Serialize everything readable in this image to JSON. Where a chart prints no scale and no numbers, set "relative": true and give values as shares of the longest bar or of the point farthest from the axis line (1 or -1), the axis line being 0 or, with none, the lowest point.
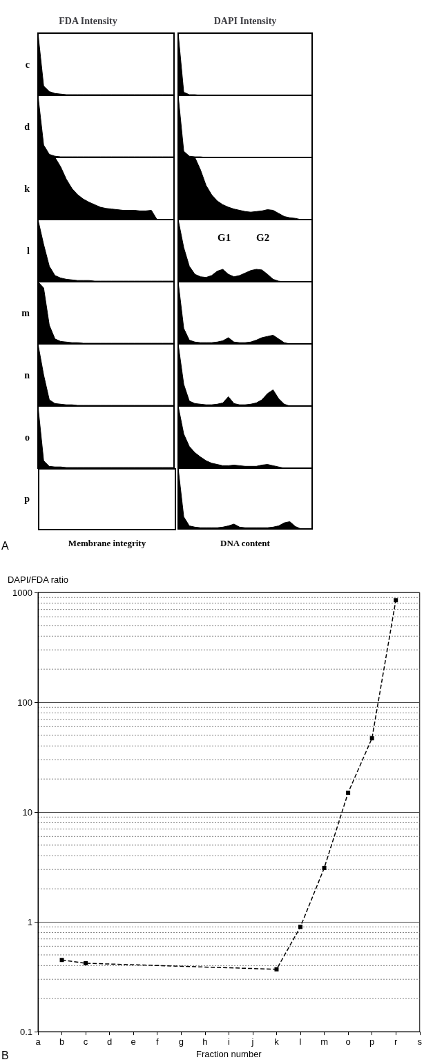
{
  "chart_data": [
    {
      "type": "area",
      "title": "FDA Intensity",
      "ylabel": "c",
      "relative": true,
      "color": "#000000",
      "categories": [
        null,
        null,
        null,
        null,
        null,
        null,
        null,
        null,
        null,
        null,
        null,
        null,
        null,
        null,
        null,
        null,
        null,
        null,
        null,
        null,
        null,
        null,
        null,
        null,
        null
      ],
      "values": [
        1,
        0.15,
        0.06,
        0.03,
        0.02,
        0.01,
        0.01,
        0.01,
        0.01,
        0.01,
        0.01,
        0.01,
        0.01,
        0.01,
        0.01,
        0.01,
        0.01,
        0.01,
        0.01,
        0.01,
        0.01,
        0.01,
        0.01,
        0.01,
        0.01
      ]
    },
    {
      "type": "area",
      "title": "DAPI Intensity",
      "relative": true,
      "color": "#000000",
      "categories": [
        null,
        null,
        null,
        null,
        null,
        null,
        null,
        null,
        null,
        null,
        null,
        null,
        null,
        null,
        null,
        null,
        null,
        null,
        null,
        null,
        null,
        null,
        null,
        null,
        null
      ],
      "values": [
        1,
        0.05,
        0.01,
        0.01,
        0,
        0,
        0,
        0,
        0,
        0,
        0,
        0,
        0,
        0,
        0,
        0,
        0,
        0,
        0,
        0,
        0,
        0,
        0,
        0,
        0
      ]
    },
    {
      "type": "area",
      "ylabel": "d",
      "relative": true,
      "color": "#000000",
      "categories": [
        null,
        null,
        null,
        null,
        null,
        null,
        null,
        null,
        null,
        null,
        null,
        null,
        null,
        null,
        null,
        null,
        null,
        null,
        null,
        null,
        null,
        null,
        null,
        null,
        null
      ],
      "values": [
        1,
        0.2,
        0.05,
        0.02,
        0.01,
        0.01,
        0.01,
        0.01,
        0.01,
        0.01,
        0.01,
        0.01,
        0.01,
        0.01,
        0.01,
        0.01,
        0.01,
        0.01,
        0.01,
        0.01,
        0.01,
        0.01,
        0.01,
        0.01,
        0.01
      ]
    },
    {
      "type": "area",
      "relative": true,
      "color": "#000000",
      "categories": [
        null,
        null,
        null,
        null,
        null,
        null,
        null,
        null,
        null,
        null,
        null,
        null,
        null,
        null,
        null,
        null,
        null,
        null,
        null,
        null,
        null,
        null,
        null,
        null,
        null
      ],
      "values": [
        1,
        0.1,
        0.02,
        0.01,
        0.01,
        0,
        0,
        0,
        0,
        0,
        0,
        0,
        0,
        0,
        0,
        0,
        0,
        0,
        0,
        0,
        0,
        0,
        0,
        0,
        0
      ]
    },
    {
      "type": "area",
      "ylabel": "k",
      "relative": true,
      "color": "#000000",
      "categories": [
        null,
        null,
        null,
        null,
        null,
        null,
        null,
        null,
        null,
        null,
        null,
        null,
        null,
        null,
        null,
        null,
        null,
        null,
        null,
        null,
        null,
        null,
        null,
        null,
        null
      ],
      "values": [
        1,
        1,
        1,
        1,
        0.85,
        0.65,
        0.5,
        0.4,
        0.33,
        0.28,
        0.24,
        0.2,
        0.18,
        0.17,
        0.16,
        0.15,
        0.15,
        0.15,
        0.14,
        0.14,
        0.15,
        0,
        0,
        0,
        0
      ]
    },
    {
      "type": "area",
      "relative": true,
      "color": "#000000",
      "categories": [
        null,
        null,
        null,
        null,
        null,
        null,
        null,
        null,
        null,
        null,
        null,
        null,
        null,
        null,
        null,
        null,
        null,
        null,
        null,
        null,
        null,
        null,
        null,
        null,
        null
      ],
      "values": [
        1,
        1,
        1,
        1,
        0.8,
        0.55,
        0.4,
        0.3,
        0.24,
        0.2,
        0.17,
        0.15,
        0.13,
        0.12,
        0.13,
        0.14,
        0.16,
        0.15,
        0.1,
        0.05,
        0.03,
        0.02,
        0,
        0,
        0
      ]
    },
    {
      "type": "area",
      "ylabel": "l",
      "relative": true,
      "color": "#000000",
      "categories": [
        null,
        null,
        null,
        null,
        null,
        null,
        null,
        null,
        null,
        null,
        null,
        null,
        null,
        null,
        null,
        null,
        null,
        null,
        null,
        null,
        null,
        null,
        null,
        null,
        null
      ],
      "values": [
        1,
        0.6,
        0.25,
        0.1,
        0.06,
        0.04,
        0.03,
        0.02,
        0.02,
        0.02,
        0.01,
        0.01,
        0.01,
        0.01,
        0.01,
        0.01,
        0.01,
        0.01,
        0.01,
        0.01,
        0.01,
        0.01,
        0.01,
        0.01,
        0.01
      ]
    },
    {
      "type": "area",
      "relative": true,
      "color": "#000000",
      "annotations": [
        "G1",
        "G2"
      ],
      "categories": [
        null,
        null,
        null,
        null,
        null,
        null,
        null,
        null,
        null,
        null,
        null,
        null,
        null,
        null,
        null,
        null,
        null,
        null,
        null,
        null,
        null,
        null,
        null,
        null,
        null
      ],
      "values": [
        1,
        0.55,
        0.25,
        0.12,
        0.08,
        0.07,
        0.1,
        0.17,
        0.2,
        0.12,
        0.08,
        0.1,
        0.14,
        0.18,
        0.2,
        0.19,
        0.12,
        0.04,
        0.01,
        0,
        0,
        0,
        0,
        0,
        0
      ]
    },
    {
      "type": "area",
      "ylabel": "m",
      "relative": true,
      "color": "#000000",
      "categories": [
        null,
        null,
        null,
        null,
        null,
        null,
        null,
        null,
        null,
        null,
        null,
        null,
        null,
        null,
        null,
        null,
        null,
        null,
        null,
        null,
        null,
        null,
        null,
        null,
        null
      ],
      "values": [
        1,
        0.9,
        0.3,
        0.08,
        0.04,
        0.03,
        0.02,
        0.02,
        0.01,
        0.01,
        0.01,
        0.01,
        0.01,
        0.01,
        0.01,
        0.01,
        0.01,
        0.01,
        0.01,
        0.01,
        0.01,
        0.01,
        0.01,
        0.01,
        0.01
      ]
    },
    {
      "type": "area",
      "relative": true,
      "color": "#000000",
      "categories": [
        null,
        null,
        null,
        null,
        null,
        null,
        null,
        null,
        null,
        null,
        null,
        null,
        null,
        null,
        null,
        null,
        null,
        null,
        null,
        null,
        null,
        null,
        null,
        null,
        null
      ],
      "values": [
        1,
        0.25,
        0.06,
        0.03,
        0.02,
        0.02,
        0.02,
        0.03,
        0.05,
        0.1,
        0.03,
        0.02,
        0.02,
        0.03,
        0.06,
        0.1,
        0.12,
        0.14,
        0.08,
        0.02,
        0,
        0,
        0,
        0,
        0
      ]
    },
    {
      "type": "area",
      "ylabel": "n",
      "relative": true,
      "color": "#000000",
      "categories": [
        null,
        null,
        null,
        null,
        null,
        null,
        null,
        null,
        null,
        null,
        null,
        null,
        null,
        null,
        null,
        null,
        null,
        null,
        null,
        null,
        null,
        null,
        null,
        null,
        null
      ],
      "values": [
        1,
        0.5,
        0.1,
        0.04,
        0.03,
        0.02,
        0.02,
        0.01,
        0.01,
        0.01,
        0.01,
        0.01,
        0.01,
        0.01,
        0.01,
        0.01,
        0.01,
        0.01,
        0.01,
        0.01,
        0.01,
        0.01,
        0.01,
        0.01,
        0.01
      ]
    },
    {
      "type": "area",
      "relative": true,
      "color": "#000000",
      "categories": [
        null,
        null,
        null,
        null,
        null,
        null,
        null,
        null,
        null,
        null,
        null,
        null,
        null,
        null,
        null,
        null,
        null,
        null,
        null,
        null,
        null,
        null,
        null,
        null,
        null
      ],
      "values": [
        1,
        0.35,
        0.08,
        0.04,
        0.03,
        0.02,
        0.02,
        0.03,
        0.05,
        0.15,
        0.04,
        0.02,
        0.02,
        0.03,
        0.05,
        0.1,
        0.2,
        0.26,
        0.12,
        0.03,
        0,
        0,
        0,
        0,
        0
      ]
    },
    {
      "type": "area",
      "ylabel": "o",
      "relative": true,
      "color": "#000000",
      "categories": [
        null,
        null,
        null,
        null,
        null,
        null,
        null,
        null,
        null,
        null,
        null,
        null,
        null,
        null,
        null,
        null,
        null,
        null,
        null,
        null,
        null,
        null,
        null,
        null,
        null
      ],
      "values": [
        1,
        0.12,
        0.03,
        0.02,
        0.02,
        0.01,
        0.01,
        0.01,
        0.01,
        0.01,
        0.01,
        0.01,
        0.01,
        0.01,
        0.01,
        0.01,
        0.01,
        0.01,
        0.01,
        0.01,
        0.01,
        0.01,
        0.01,
        0.01,
        0.01
      ]
    },
    {
      "type": "area",
      "relative": true,
      "color": "#000000",
      "categories": [
        null,
        null,
        null,
        null,
        null,
        null,
        null,
        null,
        null,
        null,
        null,
        null,
        null,
        null,
        null,
        null,
        null,
        null,
        null,
        null,
        null,
        null,
        null,
        null,
        null
      ],
      "values": [
        1,
        0.55,
        0.35,
        0.25,
        0.18,
        0.12,
        0.08,
        0.06,
        0.04,
        0.04,
        0.05,
        0.04,
        0.03,
        0.03,
        0.03,
        0.05,
        0.06,
        0.04,
        0.02,
        0,
        0,
        0,
        0,
        0,
        0
      ]
    },
    {
      "type": "other",
      "ylabel": "p",
      "xlabel": "Membrane integrity",
      "annotations": [
        "A"
      ]
    },
    {
      "type": "area",
      "xlabel": "DNA content",
      "relative": true,
      "color": "#000000",
      "categories": [
        null,
        null,
        null,
        null,
        null,
        null,
        null,
        null,
        null,
        null,
        null,
        null,
        null,
        null,
        null,
        null,
        null,
        null,
        null,
        null,
        null,
        null,
        null,
        null,
        null
      ],
      "values": [
        1,
        0.2,
        0.05,
        0.03,
        0.02,
        0.02,
        0.02,
        0.02,
        0.03,
        0.05,
        0.08,
        0.03,
        0.02,
        0.02,
        0.02,
        0.02,
        0.02,
        0.03,
        0.05,
        0.1,
        0.12,
        0.04,
        0,
        0,
        0
      ]
    },
    {
      "type": "line",
      "ylabel": "DAPI/FDA ratio",
      "xlabel": "Fraction number",
      "annotations": [
        "B"
      ],
      "color": "#000000",
      "log": true,
      "grid": "y",
      "marker": "square",
      "line_style": "dashed",
      "ylim": [
        0.1,
        1000
      ],
      "yticks": [
        0.1,
        1,
        10,
        100,
        1000
      ],
      "categories": [
        "a",
        "b",
        "c",
        "d",
        "e",
        "f",
        "g",
        "h",
        "i",
        "j",
        "k",
        "l",
        "m",
        "o",
        "p",
        "r",
        "s"
      ],
      "values": [
        null,
        0.45,
        0.42,
        null,
        null,
        null,
        null,
        null,
        null,
        null,
        0.37,
        0.9,
        3.1,
        15,
        47,
        850,
        null
      ]
    }
  ]
}
